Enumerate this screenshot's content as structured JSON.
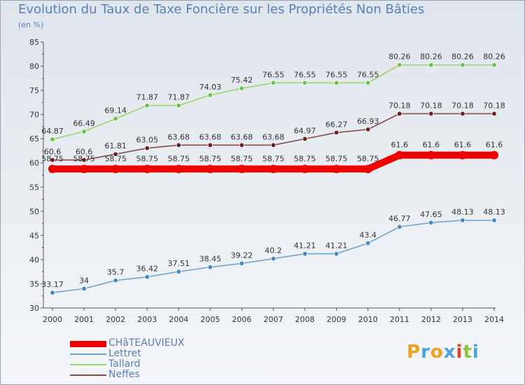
{
  "title": "Evolution du Taux de Taxe Foncière sur les Propriétés Non Bâties",
  "unit_label": "(en %)",
  "logo": {
    "text": "Proxiti",
    "letters": [
      {
        "ch": "P",
        "color": "#f0a020"
      },
      {
        "ch": "r",
        "color": "#4aa3df"
      },
      {
        "ch": "o",
        "color": "#f0a020"
      },
      {
        "ch": "x",
        "color": "#4aa3df"
      },
      {
        "ch": "i",
        "color": "#e0402a"
      },
      {
        "ch": "t",
        "color": "#8cc63f"
      },
      {
        "ch": "i",
        "color": "#4aa3df"
      }
    ]
  },
  "chart_data": {
    "type": "line",
    "title": "Evolution du Taux de Taxe Foncière sur les Propriétés Non Bâties",
    "ylabel": "(en %)",
    "xlabel": "",
    "ylim": [
      30,
      85
    ],
    "yticks": [
      "30",
      "35",
      "40",
      "45",
      "50",
      "55",
      "60",
      "65",
      "70",
      "75",
      "80",
      "85"
    ],
    "grid": false,
    "legend_position": "bottom-left",
    "x": [
      "2000",
      "2001",
      "2002",
      "2003",
      "2004",
      "2005",
      "2006",
      "2007",
      "2008",
      "2009",
      "2010",
      "2011",
      "2012",
      "2013",
      "2014"
    ],
    "series": [
      {
        "name": "CHâTEAUVIEUX",
        "color": "#ee0000",
        "marker": "#ee0000",
        "bold": true,
        "values": [
          58.75,
          58.75,
          58.75,
          58.75,
          58.75,
          58.75,
          58.75,
          58.75,
          58.75,
          58.75,
          58.75,
          61.6,
          61.6,
          61.6,
          61.6
        ],
        "labels": [
          "58.75",
          "58.75",
          "58.75",
          "58.75",
          "58.75",
          "58.75",
          "58.75",
          "58.75",
          "58.75",
          "58.75",
          "58.75",
          "61.6",
          "61.6",
          "61.6",
          "61.6"
        ]
      },
      {
        "name": "Lettret",
        "color": "#6fa3d0",
        "marker": "#3f88c5",
        "bold": false,
        "values": [
          33.17,
          34,
          35.7,
          36.42,
          37.51,
          38.45,
          39.22,
          40.2,
          41.21,
          41.21,
          43.4,
          46.77,
          47.65,
          48.13,
          48.13
        ],
        "labels": [
          "33.17",
          "34",
          "35.7",
          "36.42",
          "37.51",
          "38.45",
          "39.22",
          "40.2",
          "41.21",
          "41.21",
          "43.4",
          "46.77",
          "47.65",
          "48.13",
          "48.13"
        ]
      },
      {
        "name": "Tallard",
        "color": "#9ad66e",
        "marker": "#6cc04a",
        "bold": false,
        "values": [
          64.87,
          66.49,
          69.14,
          71.87,
          71.87,
          74.03,
          75.42,
          76.55,
          76.55,
          76.55,
          76.55,
          80.26,
          80.26,
          80.26,
          80.26
        ],
        "labels": [
          "64.87",
          "66.49",
          "69.14",
          "71.87",
          "71.87",
          "74.03",
          "75.42",
          "76.55",
          "76.55",
          "76.55",
          "76.55",
          "80.26",
          "80.26",
          "80.26",
          "80.26"
        ]
      },
      {
        "name": "Neffes",
        "color": "#8a4a4a",
        "marker": "#6b1f1f",
        "bold": false,
        "values": [
          60.6,
          60.6,
          61.81,
          63.05,
          63.68,
          63.68,
          63.68,
          63.68,
          64.97,
          66.27,
          66.93,
          70.18,
          70.18,
          70.18,
          70.18
        ],
        "labels": [
          "60.6",
          "60.6",
          "61.81",
          "63.05",
          "63.68",
          "63.68",
          "63.68",
          "63.68",
          "64.97",
          "66.27",
          "66.93",
          "70.18",
          "70.18",
          "70.18",
          "70.18"
        ]
      }
    ]
  }
}
